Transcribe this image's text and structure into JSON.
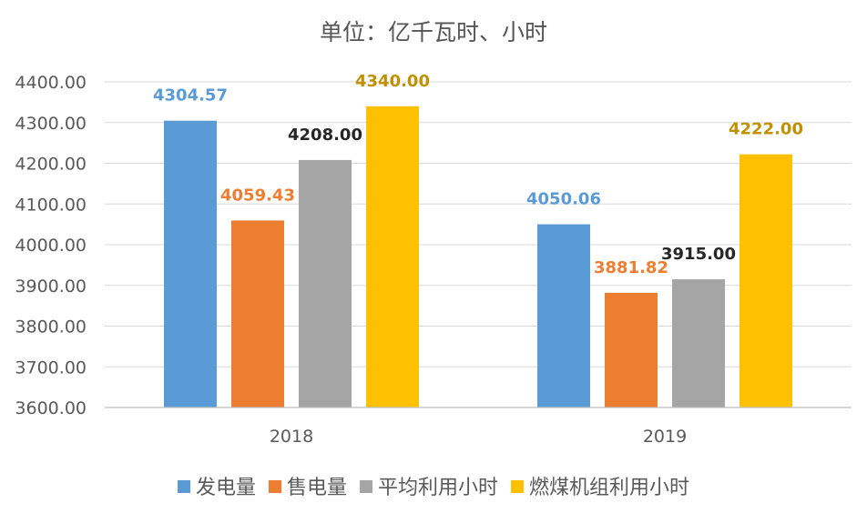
{
  "chart_data": {
    "type": "bar",
    "title": "单位：亿千瓦时、小时",
    "categories": [
      "2018",
      "2019"
    ],
    "ylim": [
      3600,
      4400
    ],
    "yticks": [
      "3600.00",
      "3700.00",
      "3800.00",
      "3900.00",
      "4000.00",
      "4100.00",
      "4200.00",
      "4300.00",
      "4400.00"
    ],
    "grid": true,
    "legend_position": "bottom",
    "series": [
      {
        "name": "发电量",
        "color": "#5B9BD5",
        "label_color": "#5B9BD5",
        "values": [
          4304.57,
          4050.06
        ],
        "labels": [
          "4304.57",
          "4050.06"
        ]
      },
      {
        "name": "售电量",
        "color": "#ED7D31",
        "label_color": "#ED7D31",
        "values": [
          4059.43,
          3881.82
        ],
        "labels": [
          "4059.43",
          "3881.82"
        ]
      },
      {
        "name": "平均利用小时",
        "color": "#A5A5A5",
        "label_color": "#262626",
        "values": [
          4208.0,
          3915.0
        ],
        "labels": [
          "4208.00",
          "3915.00"
        ]
      },
      {
        "name": "燃煤机组利用小时",
        "color": "#FFC000",
        "label_color": "#C09000",
        "values": [
          4340.0,
          4222.0
        ],
        "labels": [
          "4340.00",
          "4222.00"
        ]
      }
    ]
  }
}
